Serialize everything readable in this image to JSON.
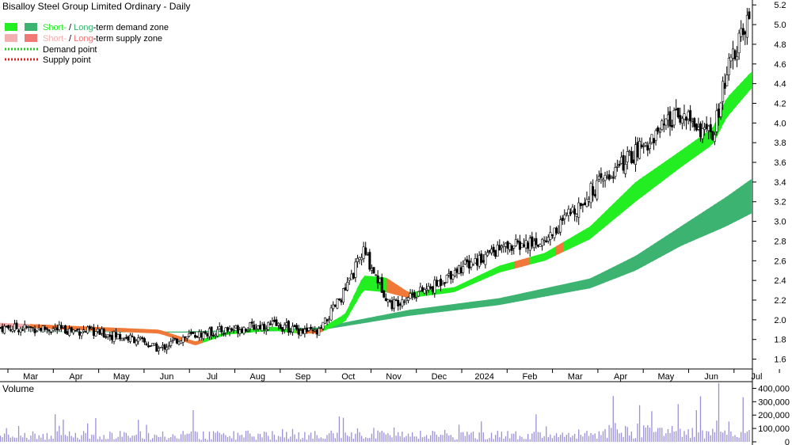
{
  "chart_data": {
    "type": "candlestick",
    "title": "Bisalloy Steel Group Limited Ordinary - Daily",
    "price_axis": {
      "ylim": [
        1.5,
        5.25
      ],
      "ticks": [
        "1.6",
        "1.8",
        "2.0",
        "2.2",
        "2.4",
        "2.6",
        "2.8",
        "3.0",
        "3.2",
        "3.4",
        "3.6",
        "3.8",
        "4.0",
        "4.2",
        "4.4",
        "4.6",
        "4.8",
        "5.0",
        "5.2"
      ]
    },
    "x_labels": [
      "Mar",
      "Apr",
      "May",
      "Jun",
      "Jul",
      "Aug",
      "Sep",
      "Oct",
      "Nov",
      "Dec",
      "2024",
      "Feb",
      "Mar",
      "Apr",
      "May",
      "Jun",
      "Jul"
    ],
    "legend": {
      "demand_short": "Short-",
      "demand_sep": " / ",
      "demand_long": "Long",
      "demand_rest": "-term demand zone",
      "supply_short": "Short-",
      "supply_sep": " / ",
      "supply_long": "Long",
      "supply_rest": "-term supply zone",
      "demand_point": "Demand point",
      "supply_point": "Supply point"
    },
    "colors": {
      "short_demand": "#22ee22",
      "long_demand": "#3cb371",
      "short_supply": "#f4b0b0",
      "long_supply": "#f07878",
      "orange_zone": "#f07838",
      "demand_point": "#22cc22",
      "supply_point": "#dd2222",
      "volume_bar": "#9a8fd8",
      "volume_label": "#5a2d8a"
    },
    "price_anchors": {
      "months": [
        0,
        1,
        2,
        3,
        3.5,
        4,
        5,
        6,
        7,
        7.6,
        8,
        8.6,
        9,
        9.5,
        10,
        11,
        12,
        13,
        14,
        15,
        15.7,
        16,
        16.5
      ],
      "close": [
        1.92,
        1.91,
        1.88,
        1.8,
        1.7,
        1.82,
        1.9,
        1.95,
        1.86,
        2.3,
        2.7,
        2.15,
        2.25,
        2.32,
        2.5,
        2.72,
        2.8,
        3.3,
        3.7,
        4.1,
        3.85,
        4.5,
        5.05
      ]
    },
    "long_zone_anchors": {
      "months": [
        0,
        4,
        7,
        9,
        11,
        13,
        14,
        15,
        16,
        16.55
      ],
      "upper": [
        1.88,
        1.88,
        1.92,
        2.1,
        2.22,
        2.42,
        2.65,
        2.95,
        3.25,
        3.43
      ],
      "lower": [
        1.88,
        1.87,
        1.89,
        2.04,
        2.15,
        2.32,
        2.5,
        2.75,
        2.95,
        3.08
      ]
    },
    "short_zone_anchors": {
      "months": [
        0,
        3.5,
        4.3,
        5,
        6,
        6.6,
        7,
        7.6,
        8,
        8.5,
        9,
        10,
        11,
        12,
        13,
        14,
        15,
        15.7,
        16,
        16.55
      ],
      "upper": [
        1.97,
        1.9,
        1.78,
        1.88,
        1.93,
        1.9,
        1.9,
        2.06,
        2.45,
        2.43,
        2.28,
        2.33,
        2.55,
        2.68,
        2.95,
        3.4,
        3.72,
        3.95,
        4.25,
        4.52
      ],
      "lower": [
        1.93,
        1.86,
        1.74,
        1.85,
        1.89,
        1.86,
        1.86,
        1.98,
        2.3,
        2.28,
        2.22,
        2.28,
        2.48,
        2.6,
        2.82,
        3.2,
        3.55,
        3.78,
        4.05,
        4.35
      ]
    },
    "volume_axis": {
      "label": "Volume",
      "ylim": [
        0,
        450000
      ],
      "ticks": [
        "0",
        "100,000",
        "200,000",
        "300,000",
        "400,000"
      ]
    }
  }
}
